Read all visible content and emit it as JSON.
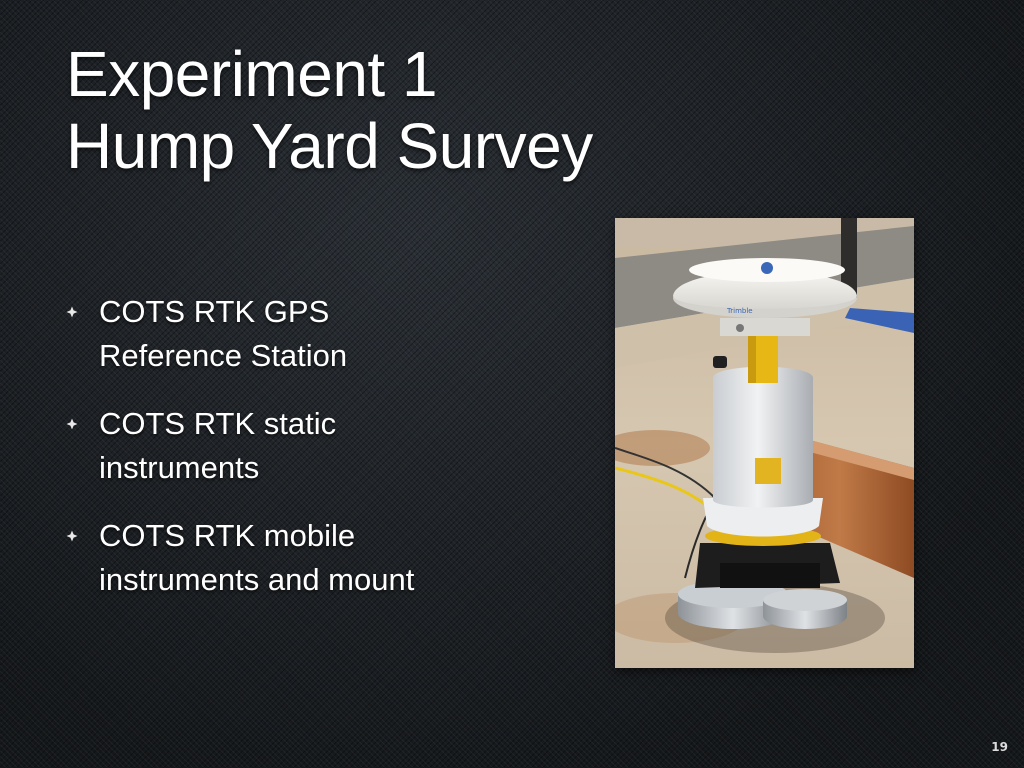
{
  "slide": {
    "title_lines": [
      "Experiment 1",
      "Hump Yard Survey"
    ],
    "bullets": [
      {
        "lines": [
          "COTS RTK GPS",
          "Reference Station"
        ]
      },
      {
        "lines": [
          "COTS RTK static",
          "instruments"
        ]
      },
      {
        "lines": [
          "COTS RTK mobile",
          "instruments and mount"
        ]
      }
    ],
    "bullet_icon": "star-bullet-icon",
    "photo": {
      "antenna_label": "Trimble",
      "antenna_icon": "trimble-logo-icon"
    },
    "slide_number": "19"
  }
}
